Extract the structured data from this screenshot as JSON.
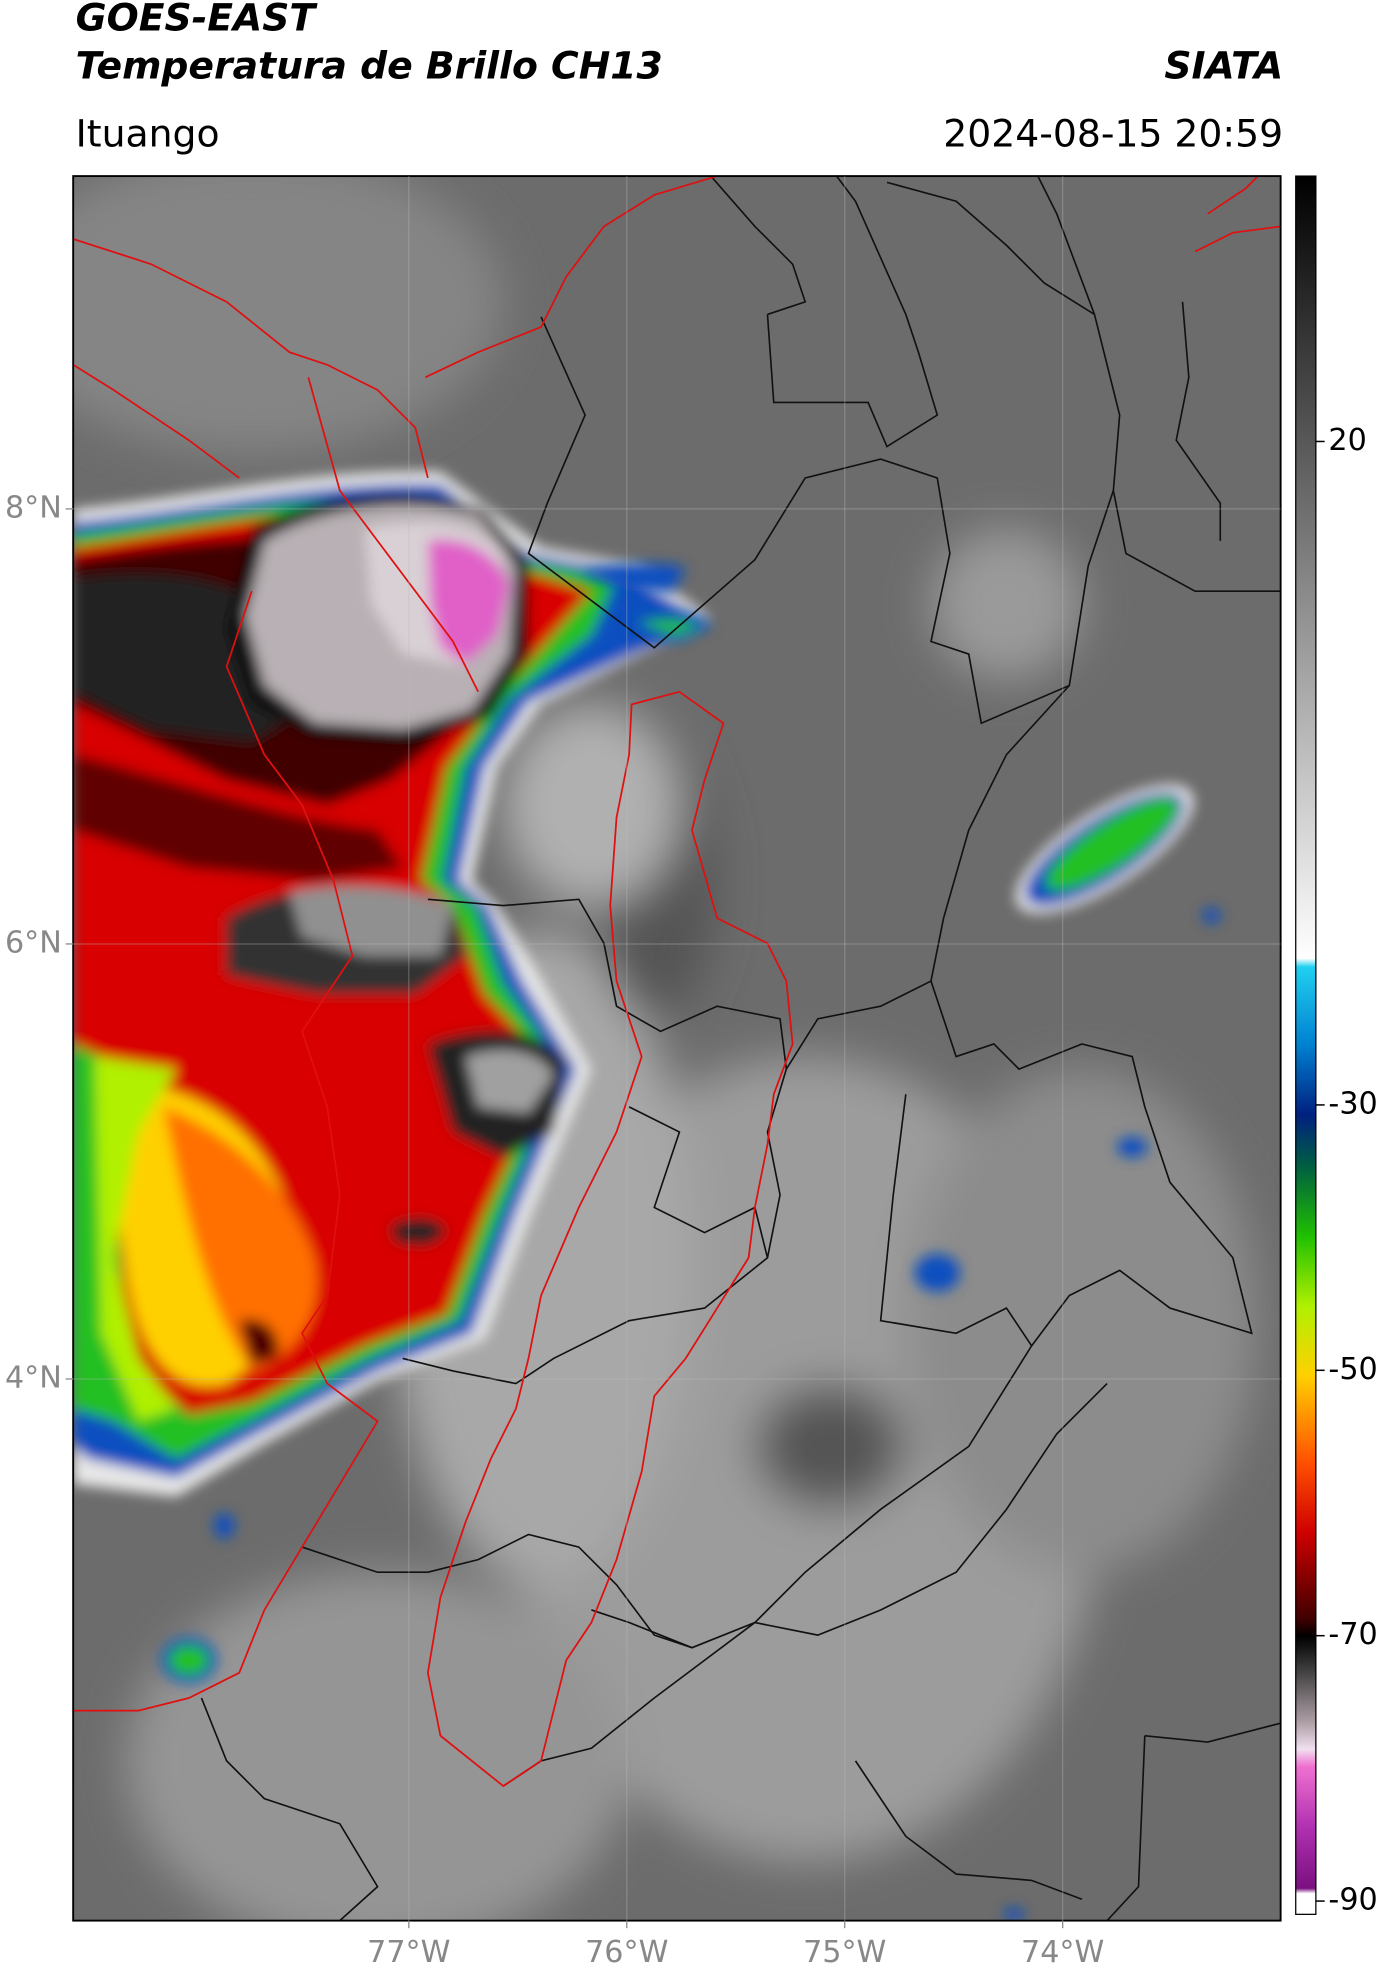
{
  "header": {
    "title": "GOES-EAST",
    "subtitle": "Temperatura de Brillo CH13",
    "source": "SIATA",
    "location": "Ituango",
    "datetime": "2024-08-15 20:59"
  },
  "map": {
    "xlim": [
      -78.54,
      -73.0
    ],
    "ylim": [
      1.51,
      9.53
    ],
    "xticks": [
      {
        "value": -77,
        "label": "77°W"
      },
      {
        "value": -76,
        "label": "76°W"
      },
      {
        "value": -75,
        "label": "75°W"
      },
      {
        "value": -74,
        "label": "74°W"
      }
    ],
    "yticks": [
      {
        "value": 8,
        "label": "8°N"
      },
      {
        "value": 6,
        "label": "6°N"
      },
      {
        "value": 4,
        "label": "4°N"
      }
    ],
    "grid": true
  },
  "colorbar": {
    "lim": [
      -91,
      40
    ],
    "ticks": [
      20,
      -30,
      -50,
      -70,
      -90
    ]
  }
}
